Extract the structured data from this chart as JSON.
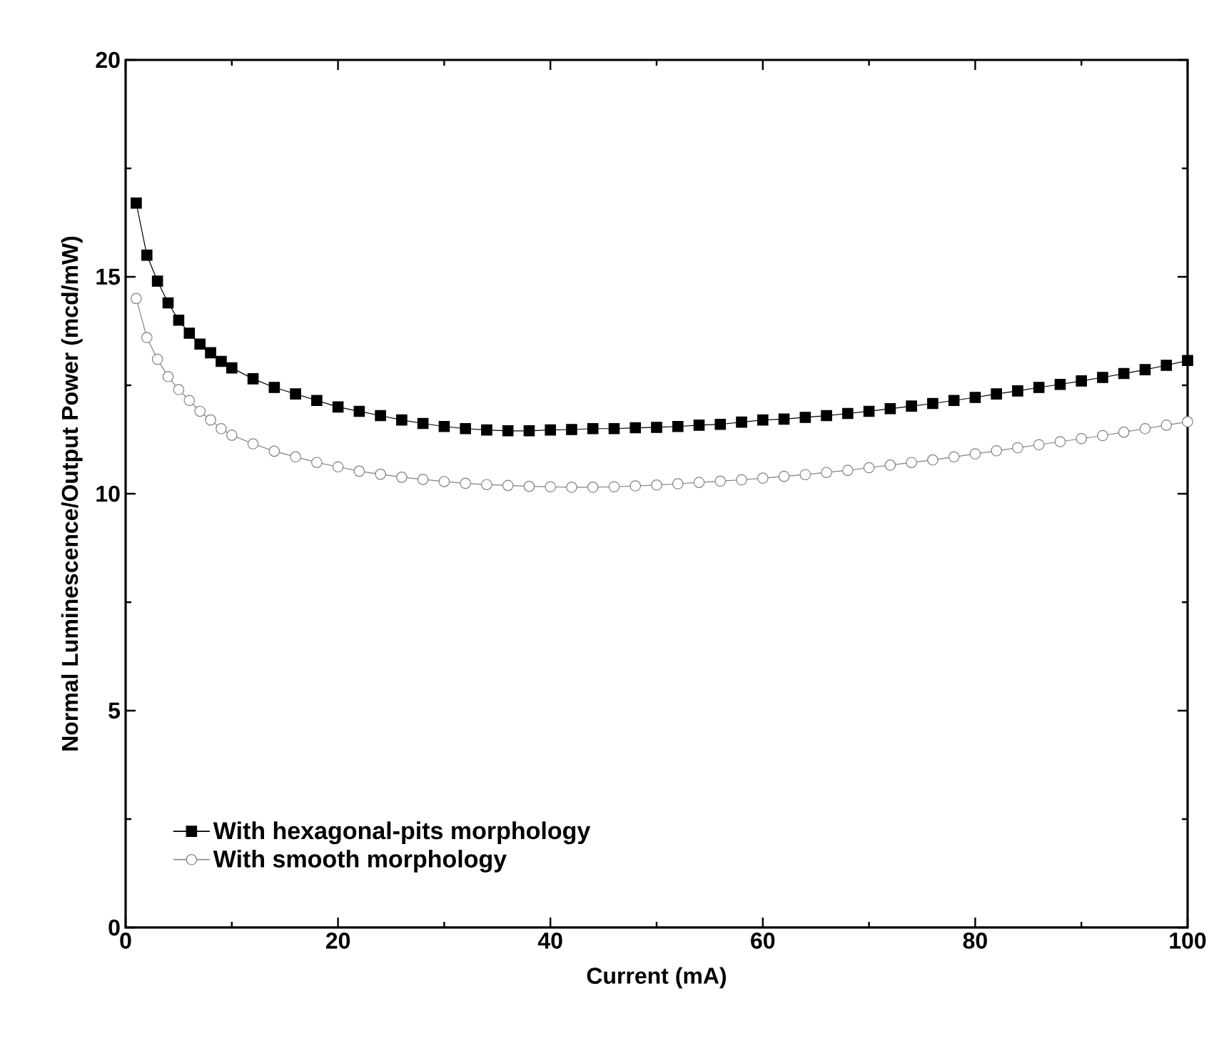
{
  "chart_data": {
    "type": "line",
    "xlabel": "Current (mA)",
    "ylabel": "Normal Luminescence/Output Power (mcd/mW)",
    "xlim": [
      0,
      100
    ],
    "ylim": [
      0,
      20
    ],
    "xticks": [
      0,
      20,
      40,
      60,
      80,
      100
    ],
    "yticks": [
      0,
      5,
      10,
      15,
      20
    ],
    "legend": "bottom left",
    "line_style": "solid",
    "x": [
      1,
      2,
      3,
      4,
      5,
      6,
      7,
      8,
      9,
      10,
      12,
      14,
      16,
      18,
      20,
      22,
      24,
      26,
      28,
      30,
      32,
      34,
      36,
      38,
      40,
      42,
      44,
      46,
      48,
      50,
      52,
      54,
      56,
      58,
      60,
      62,
      64,
      66,
      68,
      70,
      72,
      74,
      76,
      78,
      80,
      82,
      84,
      86,
      88,
      90,
      92,
      94,
      96,
      98,
      100
    ],
    "series": [
      {
        "name": "With hexagonal-pits morphology",
        "color": "#000000",
        "marker": "square",
        "values": [
          16.7,
          15.5,
          14.9,
          14.4,
          14.0,
          13.7,
          13.45,
          13.25,
          13.05,
          12.9,
          12.65,
          12.45,
          12.3,
          12.15,
          12.0,
          11.9,
          11.8,
          11.7,
          11.62,
          11.55,
          11.5,
          11.47,
          11.45,
          11.45,
          11.47,
          11.48,
          11.5,
          11.5,
          11.52,
          11.53,
          11.55,
          11.58,
          11.6,
          11.65,
          11.7,
          11.72,
          11.76,
          11.8,
          11.85,
          11.9,
          11.96,
          12.02,
          12.08,
          12.15,
          12.22,
          12.3,
          12.37,
          12.45,
          12.52,
          12.6,
          12.68,
          12.77,
          12.86,
          12.96,
          13.07
        ]
      },
      {
        "name": "With smooth morphology",
        "color": "#808080",
        "marker": "circle",
        "values": [
          14.5,
          13.6,
          13.1,
          12.7,
          12.4,
          12.15,
          11.9,
          11.7,
          11.5,
          11.35,
          11.15,
          10.98,
          10.85,
          10.72,
          10.62,
          10.52,
          10.45,
          10.38,
          10.33,
          10.28,
          10.24,
          10.21,
          10.19,
          10.17,
          10.16,
          10.15,
          10.15,
          10.16,
          10.18,
          10.2,
          10.23,
          10.26,
          10.29,
          10.32,
          10.36,
          10.4,
          10.44,
          10.49,
          10.54,
          10.6,
          10.66,
          10.72,
          10.78,
          10.85,
          10.92,
          10.99,
          11.06,
          11.13,
          11.2,
          11.27,
          11.34,
          11.42,
          11.5,
          11.58,
          11.66
        ]
      }
    ]
  }
}
